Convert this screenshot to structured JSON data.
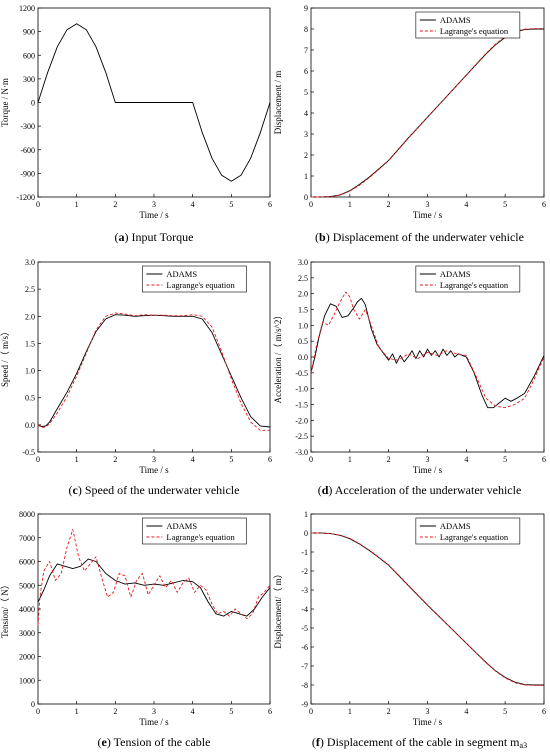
{
  "chart_data": [
    {
      "type": "line",
      "caption_letter": "a",
      "caption_text": "Input Torque",
      "xlabel": "Time / s",
      "ylabel": "Torque / N·m",
      "xlim": [
        0,
        6
      ],
      "ylim": [
        -1200,
        1200
      ],
      "xticks": [
        0,
        1,
        2,
        3,
        4,
        5,
        6
      ],
      "yticks": [
        -1200,
        -900,
        -600,
        -300,
        0,
        300,
        600,
        900,
        1200
      ],
      "legend": null,
      "series": [
        {
          "style": "solid",
          "color": "#000000",
          "x": [
            0,
            0.25,
            0.5,
            0.75,
            1,
            1.25,
            1.5,
            1.75,
            2,
            2.5,
            3,
            3.5,
            4,
            4.25,
            4.5,
            4.75,
            5,
            5.25,
            5.5,
            5.75,
            6
          ],
          "y": [
            0,
            383,
            707,
            924,
            1000,
            924,
            707,
            383,
            0,
            0,
            0,
            0,
            0,
            -383,
            -707,
            -924,
            -1000,
            -924,
            -707,
            -383,
            0
          ]
        }
      ]
    },
    {
      "type": "line",
      "caption_letter": "b",
      "caption_text": "Displacement of the underwater vehicle",
      "xlabel": "Time / s",
      "ylabel": "Displacement / m",
      "xlim": [
        0,
        6
      ],
      "ylim": [
        0,
        9
      ],
      "xticks": [
        0,
        1,
        2,
        3,
        4,
        5,
        6
      ],
      "yticks": [
        0,
        1,
        2,
        3,
        4,
        5,
        6,
        7,
        8,
        9
      ],
      "legend": [
        "ADAMS",
        "Lagrange's equation"
      ],
      "series": [
        {
          "name": "ADAMS",
          "style": "solid",
          "color": "#000000",
          "x": [
            0,
            0.25,
            0.5,
            0.75,
            1,
            1.25,
            1.5,
            1.75,
            2,
            2.5,
            3,
            3.5,
            4,
            4.25,
            4.5,
            4.75,
            5,
            5.25,
            5.5,
            5.75,
            6
          ],
          "y": [
            0,
            0,
            0.02,
            0.1,
            0.3,
            0.6,
            0.95,
            1.35,
            1.75,
            2.8,
            3.8,
            4.8,
            5.8,
            6.3,
            6.8,
            7.25,
            7.6,
            7.85,
            7.97,
            8.0,
            8.0
          ]
        },
        {
          "name": "Lagrange's equation",
          "style": "dashed",
          "color": "#e8191b",
          "x": [
            0,
            0.25,
            0.5,
            0.75,
            1,
            1.25,
            1.5,
            1.75,
            2,
            2.5,
            3,
            3.5,
            4,
            4.25,
            4.5,
            4.75,
            5,
            5.25,
            5.5,
            5.75,
            6
          ],
          "y": [
            0,
            0,
            0.02,
            0.09,
            0.28,
            0.56,
            0.92,
            1.32,
            1.73,
            2.78,
            3.79,
            4.8,
            5.81,
            6.32,
            6.83,
            7.28,
            7.64,
            7.88,
            7.99,
            8.02,
            8.02
          ]
        }
      ]
    },
    {
      "type": "line",
      "caption_letter": "c",
      "caption_text": "Speed of the underwater vehicle",
      "xlabel": "Time / s",
      "ylabel": "Speed /（ m/s）",
      "xlim": [
        0,
        6
      ],
      "ylim": [
        -0.5,
        3.0
      ],
      "xticks": [
        0,
        1,
        2,
        3,
        4,
        5,
        6
      ],
      "yticks": [
        -0.5,
        0.0,
        0.5,
        1.0,
        1.5,
        2.0,
        2.5,
        3.0
      ],
      "legend": [
        "ADAMS",
        "Lagrange's equation"
      ],
      "series": [
        {
          "name": "ADAMS",
          "style": "solid",
          "color": "#000000",
          "x": [
            0,
            0.1,
            0.2,
            0.3,
            0.5,
            0.75,
            1,
            1.25,
            1.5,
            1.75,
            2,
            2.25,
            2.5,
            2.75,
            3,
            3.25,
            3.5,
            3.75,
            4,
            4.25,
            4.5,
            4.75,
            5,
            5.25,
            5.5,
            5.75,
            6
          ],
          "y": [
            0,
            -0.03,
            -0.02,
            0.05,
            0.3,
            0.6,
            0.95,
            1.35,
            1.72,
            1.95,
            2.03,
            2.02,
            2.0,
            2.01,
            2.02,
            2.01,
            2.0,
            2.0,
            2.0,
            1.95,
            1.7,
            1.3,
            0.9,
            0.5,
            0.15,
            -0.02,
            -0.04
          ]
        },
        {
          "name": "Lagrange's equation",
          "style": "dashed",
          "color": "#e8191b",
          "x": [
            0,
            0.1,
            0.2,
            0.3,
            0.5,
            0.75,
            1,
            1.25,
            1.5,
            1.75,
            2,
            2.25,
            2.5,
            2.75,
            3,
            3.25,
            3.5,
            3.75,
            4,
            4.25,
            4.5,
            4.75,
            5,
            5.25,
            5.5,
            5.75,
            6
          ],
          "y": [
            0,
            -0.05,
            -0.04,
            0.02,
            0.22,
            0.52,
            0.9,
            1.32,
            1.75,
            2.0,
            2.06,
            2.04,
            2.01,
            2.03,
            2.02,
            2.02,
            2.01,
            2.01,
            2.03,
            2.0,
            1.8,
            1.35,
            0.85,
            0.4,
            0.05,
            -0.1,
            -0.1
          ]
        }
      ]
    },
    {
      "type": "line",
      "caption_letter": "d",
      "caption_text": "Acceleration of the underwater vehicle",
      "xlabel": "Time / s",
      "ylabel": "Acceleration /（ m/s^2）",
      "xlim": [
        0,
        6
      ],
      "ylim": [
        -3.0,
        3.0
      ],
      "xticks": [
        0,
        1,
        2,
        3,
        4,
        5,
        6
      ],
      "yticks": [
        -3.0,
        -2.5,
        -2.0,
        -1.5,
        -1.0,
        -0.5,
        0.0,
        0.5,
        1.0,
        1.5,
        2.0,
        2.5,
        3.0
      ],
      "legend": [
        "ADAMS",
        "Lagrange's equation"
      ],
      "series": [
        {
          "name": "ADAMS",
          "style": "solid",
          "color": "#000000",
          "x": [
            0,
            0.1,
            0.2,
            0.35,
            0.5,
            0.65,
            0.8,
            0.95,
            1.1,
            1.2,
            1.3,
            1.4,
            1.55,
            1.7,
            1.85,
            2.0,
            2.1,
            2.2,
            2.3,
            2.4,
            2.5,
            2.6,
            2.7,
            2.8,
            2.9,
            3.0,
            3.1,
            3.2,
            3.3,
            3.4,
            3.5,
            3.6,
            3.7,
            3.8,
            3.9,
            4.0,
            4.2,
            4.4,
            4.55,
            4.7,
            4.85,
            5.0,
            5.15,
            5.3,
            5.5,
            5.75,
            6.0
          ],
          "y": [
            -0.5,
            0.0,
            0.6,
            1.3,
            1.68,
            1.6,
            1.25,
            1.3,
            1.55,
            1.75,
            1.85,
            1.65,
            0.9,
            0.4,
            0.15,
            -0.1,
            0.1,
            -0.2,
            0.05,
            -0.15,
            0.0,
            0.2,
            -0.05,
            0.2,
            0.0,
            0.25,
            0.05,
            0.2,
            0.0,
            0.25,
            0.05,
            0.2,
            0.0,
            0.1,
            0.05,
            0.0,
            -0.5,
            -1.2,
            -1.6,
            -1.6,
            -1.45,
            -1.3,
            -1.4,
            -1.3,
            -1.15,
            -0.6,
            0.05
          ]
        },
        {
          "name": "Lagrange's equation",
          "style": "dashed",
          "color": "#e8191b",
          "x": [
            0,
            0.15,
            0.3,
            0.45,
            0.6,
            0.75,
            0.9,
            1.0,
            1.1,
            1.25,
            1.4,
            1.55,
            1.75,
            2.0,
            2.25,
            2.5,
            2.75,
            3.0,
            3.25,
            3.5,
            3.75,
            4.0,
            4.25,
            4.5,
            4.75,
            5.0,
            5.25,
            5.5,
            5.75,
            6.0
          ],
          "y": [
            -0.5,
            0.4,
            1.1,
            1.0,
            1.35,
            1.75,
            2.05,
            1.9,
            1.5,
            1.2,
            1.5,
            1.0,
            0.3,
            -0.05,
            -0.1,
            0.1,
            -0.05,
            0.15,
            0.05,
            0.2,
            0.1,
            0.05,
            -0.6,
            -1.3,
            -1.55,
            -1.6,
            -1.5,
            -1.3,
            -0.7,
            0.0
          ]
        }
      ]
    },
    {
      "type": "line",
      "caption_letter": "e",
      "caption_text": "Tension of the cable",
      "xlabel": "Time / s",
      "ylabel": "Tension/（ N）",
      "xlim": [
        0,
        6
      ],
      "ylim": [
        0,
        8000
      ],
      "xticks": [
        0,
        1,
        2,
        3,
        4,
        5,
        6
      ],
      "yticks": [
        0,
        1000,
        2000,
        3000,
        4000,
        5000,
        6000,
        7000,
        8000
      ],
      "legend": [
        "ADAMS",
        "Lagrange's equation"
      ],
      "series": [
        {
          "name": "ADAMS",
          "style": "solid",
          "color": "#000000",
          "x": [
            0,
            0.15,
            0.3,
            0.5,
            0.7,
            0.9,
            1.1,
            1.3,
            1.5,
            1.75,
            2.0,
            2.25,
            2.5,
            2.75,
            3.0,
            3.25,
            3.5,
            3.75,
            4.0,
            4.2,
            4.4,
            4.6,
            4.8,
            5.0,
            5.2,
            5.4,
            5.6,
            5.8,
            6.0
          ],
          "y": [
            4300,
            4800,
            5400,
            5900,
            5800,
            5700,
            5800,
            6100,
            6000,
            5500,
            5200,
            5050,
            5100,
            5000,
            5050,
            5000,
            5100,
            5200,
            5150,
            4900,
            4300,
            3800,
            3700,
            3900,
            3800,
            3700,
            4000,
            4500,
            4900
          ]
        },
        {
          "name": "Lagrange's equation",
          "style": "dashed",
          "color": "#e8191b",
          "x": [
            0,
            0.05,
            0.15,
            0.3,
            0.45,
            0.6,
            0.75,
            0.9,
            1.05,
            1.2,
            1.35,
            1.5,
            1.65,
            1.8,
            1.95,
            2.1,
            2.25,
            2.4,
            2.55,
            2.7,
            2.85,
            3.0,
            3.15,
            3.3,
            3.45,
            3.6,
            3.75,
            3.9,
            4.05,
            4.2,
            4.35,
            4.5,
            4.65,
            4.8,
            4.95,
            5.1,
            5.25,
            5.4,
            5.55,
            5.7,
            5.85,
            6.0
          ],
          "y": [
            3300,
            4500,
            5600,
            6000,
            5200,
            5500,
            6600,
            7350,
            6200,
            5600,
            5900,
            6200,
            5300,
            4500,
            4700,
            5500,
            5400,
            4500,
            5200,
            5500,
            4600,
            5000,
            5400,
            4900,
            5200,
            4700,
            5100,
            5300,
            4700,
            5000,
            4800,
            4200,
            3800,
            3900,
            3700,
            4000,
            3800,
            3600,
            3800,
            4500,
            4700,
            5000
          ]
        }
      ]
    },
    {
      "type": "line",
      "caption_letter": "f",
      "caption_text": "Displacement of the cable in segment m",
      "caption_sub": "a3",
      "xlabel": "Time / s",
      "ylabel": "Displacement/（ m）",
      "xlim": [
        0,
        6
      ],
      "ylim": [
        -9,
        1
      ],
      "xticks": [
        0,
        1,
        2,
        3,
        4,
        5,
        6
      ],
      "yticks": [
        -9,
        -8,
        -7,
        -6,
        -5,
        -4,
        -3,
        -2,
        -1,
        0,
        1
      ],
      "legend": [
        "ADAMS",
        "Lagrange's equation"
      ],
      "series": [
        {
          "name": "ADAMS",
          "style": "solid",
          "color": "#000000",
          "x": [
            0,
            0.25,
            0.5,
            0.75,
            1,
            1.25,
            1.5,
            1.75,
            2,
            2.5,
            3,
            3.5,
            4,
            4.25,
            4.5,
            4.75,
            5,
            5.25,
            5.5,
            5.75,
            6
          ],
          "y": [
            0,
            0,
            -0.03,
            -0.12,
            -0.3,
            -0.58,
            -0.92,
            -1.3,
            -1.7,
            -2.75,
            -3.8,
            -4.8,
            -5.8,
            -6.3,
            -6.8,
            -7.25,
            -7.6,
            -7.85,
            -7.98,
            -8.0,
            -8.0
          ]
        },
        {
          "name": "Lagrange's equation",
          "style": "dashed",
          "color": "#e8191b",
          "x": [
            0,
            0.25,
            0.5,
            0.75,
            1,
            1.25,
            1.5,
            1.75,
            2,
            2.5,
            3,
            3.5,
            4,
            4.25,
            4.5,
            4.75,
            5,
            5.25,
            5.5,
            5.75,
            6
          ],
          "y": [
            0,
            0,
            -0.03,
            -0.11,
            -0.28,
            -0.56,
            -0.9,
            -1.28,
            -1.68,
            -2.73,
            -3.78,
            -4.79,
            -5.8,
            -6.31,
            -6.82,
            -7.27,
            -7.63,
            -7.88,
            -8.0,
            -8.02,
            -8.02
          ]
        }
      ]
    }
  ]
}
